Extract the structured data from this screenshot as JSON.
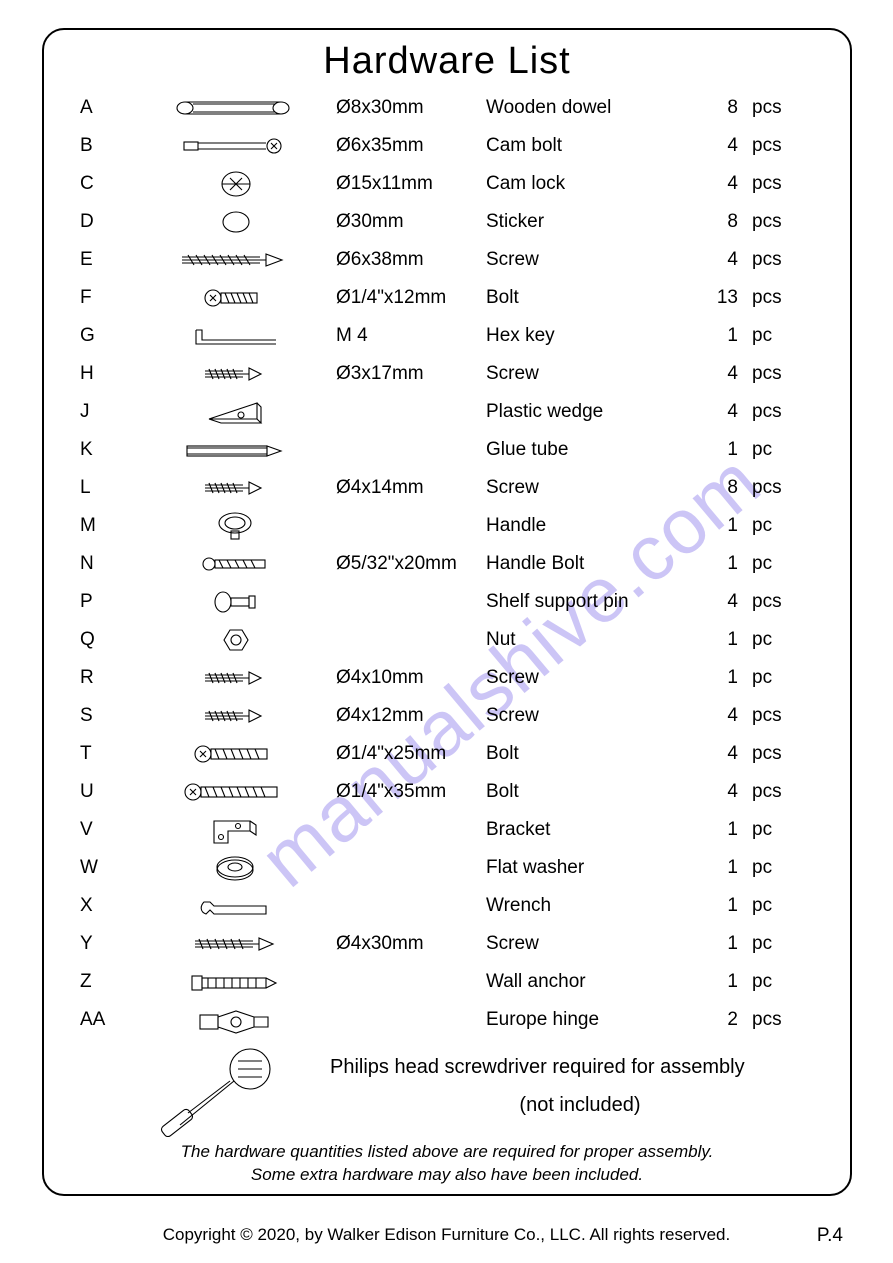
{
  "title": "Hardware  List",
  "watermark_text": "manualshive.com",
  "watermark_color": "#7a68e8",
  "items": [
    {
      "letter": "A",
      "icon": "dowel",
      "size": "Ø8x30mm",
      "name": "Wooden dowel",
      "qty": "8",
      "unit": "pcs"
    },
    {
      "letter": "B",
      "icon": "cambolt",
      "size": "Ø6x35mm",
      "name": "Cam bolt",
      "qty": "4",
      "unit": "pcs"
    },
    {
      "letter": "C",
      "icon": "camlock",
      "size": "Ø15x11mm",
      "name": "Cam lock",
      "qty": "4",
      "unit": "pcs"
    },
    {
      "letter": "D",
      "icon": "sticker",
      "size": "Ø30mm",
      "name": "Sticker",
      "qty": "8",
      "unit": "pcs"
    },
    {
      "letter": "E",
      "icon": "screw-long",
      "size": "Ø6x38mm",
      "name": "Screw",
      "qty": "4",
      "unit": "pcs"
    },
    {
      "letter": "F",
      "icon": "bolt-short",
      "size": "Ø1/4\"x12mm",
      "name": "Bolt",
      "qty": "13",
      "unit": "pcs"
    },
    {
      "letter": "G",
      "icon": "hexkey",
      "size": "M 4",
      "name": "Hex key",
      "qty": "1",
      "unit": "pc"
    },
    {
      "letter": "H",
      "icon": "screw-small",
      "size": "Ø3x17mm",
      "name": "Screw",
      "qty": "4",
      "unit": "pcs"
    },
    {
      "letter": "J",
      "icon": "wedge",
      "size": "",
      "name": "Plastic wedge",
      "qty": "4",
      "unit": "pcs"
    },
    {
      "letter": "K",
      "icon": "gluetube",
      "size": "",
      "name": "Glue tube",
      "qty": "1",
      "unit": "pc"
    },
    {
      "letter": "L",
      "icon": "screw-small",
      "size": "Ø4x14mm",
      "name": "Screw",
      "qty": "8",
      "unit": "pcs"
    },
    {
      "letter": "M",
      "icon": "handle",
      "size": "",
      "name": "Handle",
      "qty": "1",
      "unit": "pc"
    },
    {
      "letter": "N",
      "icon": "handlebolt",
      "size": "Ø5/32\"x20mm",
      "name": "Handle Bolt",
      "qty": "1",
      "unit": "pc"
    },
    {
      "letter": "P",
      "icon": "shelfpin",
      "size": "",
      "name": "Shelf support pin",
      "qty": "4",
      "unit": "pcs"
    },
    {
      "letter": "Q",
      "icon": "nut",
      "size": "",
      "name": "Nut",
      "qty": "1",
      "unit": "pc"
    },
    {
      "letter": "R",
      "icon": "screw-small",
      "size": "Ø4x10mm",
      "name": "Screw",
      "qty": "1",
      "unit": "pc"
    },
    {
      "letter": "S",
      "icon": "screw-small",
      "size": "Ø4x12mm",
      "name": "Screw",
      "qty": "4",
      "unit": "pcs"
    },
    {
      "letter": "T",
      "icon": "bolt-med",
      "size": "Ø1/4\"x25mm",
      "name": "Bolt",
      "qty": "4",
      "unit": "pcs"
    },
    {
      "letter": "U",
      "icon": "bolt-long",
      "size": "Ø1/4\"x35mm",
      "name": "Bolt",
      "qty": "4",
      "unit": "pcs"
    },
    {
      "letter": "V",
      "icon": "bracket",
      "size": "",
      "name": "Bracket",
      "qty": "1",
      "unit": "pc"
    },
    {
      "letter": "W",
      "icon": "washer",
      "size": "",
      "name": "Flat washer",
      "qty": "1",
      "unit": "pc"
    },
    {
      "letter": "X",
      "icon": "wrench",
      "size": "",
      "name": "Wrench",
      "qty": "1",
      "unit": "pc"
    },
    {
      "letter": "Y",
      "icon": "screw-med",
      "size": "Ø4x30mm",
      "name": "Screw",
      "qty": "1",
      "unit": "pc"
    },
    {
      "letter": "Z",
      "icon": "wallanchor",
      "size": "",
      "name": "Wall anchor",
      "qty": "1",
      "unit": "pc"
    },
    {
      "letter": "AA",
      "icon": "hinge",
      "size": "",
      "name": "Europe hinge",
      "qty": "2",
      "unit": "pcs"
    }
  ],
  "note_line1": "Philips head screwdriver required for assembly",
  "note_line2": "(not included)",
  "disclaimer_line1": "The hardware quantities listed above are required for proper assembly.",
  "disclaimer_line2": "Some extra hardware may also have been included.",
  "copyright": "Copyright  © 2020, by Walker Edison Furniture Co., LLC. All rights reserved.",
  "page_number": "P.4"
}
